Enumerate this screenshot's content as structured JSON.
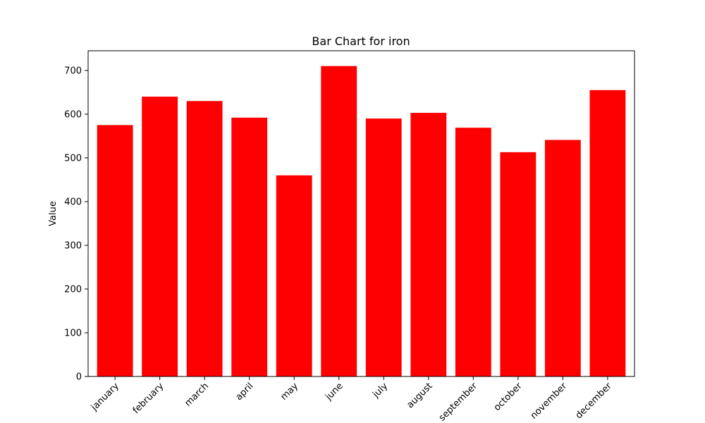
{
  "chart_data": {
    "type": "bar",
    "title": "Bar Chart for iron",
    "xlabel": "",
    "ylabel": "Value",
    "categories": [
      "january",
      "february",
      "march",
      "april",
      "may",
      "june",
      "july",
      "august",
      "september",
      "october",
      "november",
      "december"
    ],
    "values": [
      575,
      640,
      630,
      592,
      460,
      710,
      590,
      603,
      569,
      513,
      541,
      655
    ],
    "ylim": [
      0,
      745
    ],
    "yticks": [
      0,
      100,
      200,
      300,
      400,
      500,
      600,
      700
    ],
    "bar_color": "#ff0000",
    "grid": false,
    "legend": "none"
  }
}
